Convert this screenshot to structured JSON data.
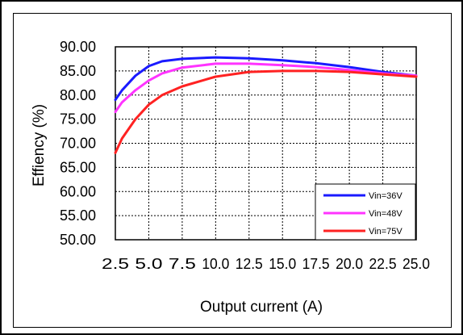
{
  "chart_data": {
    "type": "line",
    "title": "",
    "xlabel": "Output current (A)",
    "ylabel": "Effiency (%)",
    "xlim": [
      2.5,
      25.0
    ],
    "ylim": [
      50,
      90
    ],
    "x_ticks": [
      2.5,
      5.0,
      7.5,
      10.0,
      12.5,
      15.0,
      17.5,
      20.0,
      22.5,
      25.0
    ],
    "x_tick_labels": [
      "2.5",
      "5.0",
      "7.5",
      "10.0",
      "12.5",
      "15.0",
      "17.5",
      "20.0",
      "22.5",
      "25.0"
    ],
    "y_ticks": [
      50,
      55,
      60,
      65,
      70,
      75,
      80,
      85,
      90
    ],
    "y_tick_labels": [
      "50.00",
      "55.00",
      "60.00",
      "65.00",
      "70.00",
      "75.00",
      "80.00",
      "85.00",
      "90.00"
    ],
    "grid": true,
    "legend_position": "bottom-right",
    "series": [
      {
        "name": "Vin=36V",
        "color": "#1a1aff",
        "x": [
          2.5,
          3.0,
          4.0,
          5.0,
          6.0,
          7.5,
          10.0,
          12.5,
          15.0,
          17.5,
          20.0,
          22.5,
          25.0
        ],
        "y": [
          79.0,
          81.0,
          84.0,
          86.0,
          87.0,
          87.5,
          87.8,
          87.6,
          87.2,
          86.6,
          85.8,
          84.8,
          84.0
        ]
      },
      {
        "name": "Vin=48V",
        "color": "#ff33ff",
        "x": [
          2.5,
          3.0,
          4.0,
          5.0,
          6.0,
          7.5,
          10.0,
          12.5,
          15.0,
          17.5,
          20.0,
          22.5,
          25.0
        ],
        "y": [
          76.5,
          78.5,
          81.0,
          83.0,
          84.5,
          85.7,
          86.5,
          86.5,
          86.2,
          85.8,
          85.2,
          84.5,
          84.0
        ]
      },
      {
        "name": "Vin=75V",
        "color": "#ff2222",
        "x": [
          2.5,
          3.0,
          4.0,
          5.0,
          6.0,
          7.5,
          10.0,
          12.5,
          15.0,
          17.5,
          20.0,
          22.5,
          25.0
        ],
        "y": [
          68.0,
          71.0,
          75.0,
          78.0,
          80.0,
          81.8,
          83.8,
          84.8,
          85.0,
          85.0,
          84.8,
          84.3,
          83.8
        ]
      }
    ]
  }
}
